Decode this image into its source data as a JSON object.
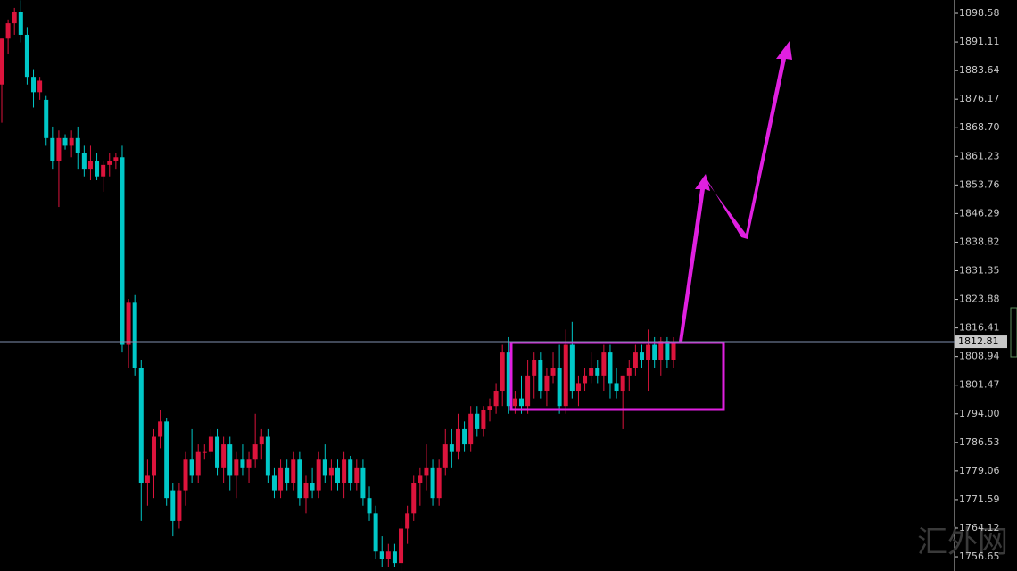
{
  "chart_data": {
    "type": "candlestick",
    "up_color": "#dc143c",
    "down_color": "#00c8c8",
    "ylim": [
      1752.93,
      1902.08
    ],
    "yticks": [
      1898.58,
      1891.11,
      1883.64,
      1876.17,
      {
        "value": 1868.7,
        "label": "1868.70"
      },
      1861.23,
      1853.76,
      1846.29,
      1838.82,
      1831.35,
      1823.88,
      1816.41,
      1808.94,
      1801.47,
      {
        "value": 1794,
        "label": "1794.00"
      },
      1786.53,
      1779.06,
      1771.59,
      1764.12,
      1756.65
    ],
    "current_price": 1812.81,
    "watermark": "汇外网",
    "open": [
      1880,
      1892,
      1896,
      1899,
      1893,
      1882,
      1878,
      1876,
      1866,
      1860,
      1866,
      1864,
      1866,
      1862,
      1858,
      1860,
      1856,
      1859,
      1860,
      1861,
      1812,
      1823,
      1806,
      1776,
      1778,
      1788,
      1792,
      1774,
      1766,
      1774,
      1782,
      1778,
      1784,
      1784,
      1788,
      1780,
      1786,
      1778,
      1782,
      1780,
      1782,
      1786,
      1788,
      1778,
      1774,
      1780,
      1776,
      1782,
      1772,
      1776,
      1774,
      1782,
      1778,
      1780,
      1776,
      1782,
      1776,
      1780,
      1772,
      1768,
      1758,
      1756,
      1758,
      1755,
      1764,
      1768,
      1776,
      1778,
      1780,
      1772,
      1780,
      1786,
      1784,
      1790,
      1786,
      1794,
      1790,
      1795,
      1796,
      1800,
      1810,
      1796,
      1798,
      1796,
      1804,
      1808,
      1800,
      1804,
      1806,
      1796,
      1812,
      1800,
      1802,
      1804,
      1806,
      1804,
      1810,
      1802,
      1800,
      1804,
      1806,
      1810,
      1808,
      1812,
      1808,
      1813,
      1808
    ],
    "high": [
      1892,
      1897,
      1900,
      1902,
      1895,
      1884,
      1882,
      1877,
      1869,
      1868,
      1867,
      1868,
      1869,
      1864,
      1864,
      1862,
      1860,
      1862,
      1862,
      1864,
      1824,
      1825,
      1808,
      1782,
      1790,
      1795,
      1793,
      1776,
      1776,
      1784,
      1790,
      1786,
      1786,
      1790,
      1790,
      1788,
      1788,
      1784,
      1786,
      1784,
      1794,
      1790,
      1790,
      1780,
      1782,
      1782,
      1784,
      1784,
      1778,
      1780,
      1784,
      1786,
      1782,
      1782,
      1784,
      1783,
      1782,
      1782,
      1775,
      1770,
      1762,
      1760,
      1760,
      1766,
      1770,
      1778,
      1780,
      1786,
      1782,
      1782,
      1790,
      1790,
      1794,
      1792,
      1796,
      1796,
      1796,
      1798,
      1802,
      1812,
      1814,
      1800,
      1804,
      1808,
      1810,
      1810,
      1806,
      1810,
      1812,
      1816,
      1818,
      1804,
      1806,
      1810,
      1808,
      1812,
      1812,
      1806,
      1804,
      1808,
      1812,
      1812,
      1816,
      1814,
      1814,
      1814,
      1814
    ],
    "low": [
      1870,
      1888,
      1893,
      1891,
      1880,
      1874,
      1876,
      1864,
      1858,
      1848,
      1863,
      1861,
      1858,
      1856,
      1855,
      1855,
      1852,
      1856,
      1858,
      1810,
      1806,
      1804,
      1766,
      1770,
      1772,
      1785,
      1770,
      1762,
      1764,
      1770,
      1776,
      1776,
      1782,
      1782,
      1778,
      1776,
      1774,
      1772,
      1778,
      1776,
      1780,
      1782,
      1776,
      1772,
      1772,
      1774,
      1774,
      1770,
      1768,
      1772,
      1772,
      1776,
      1774,
      1774,
      1772,
      1774,
      1774,
      1770,
      1766,
      1756,
      1754,
      1754,
      1754,
      1753,
      1760,
      1766,
      1770,
      1774,
      1770,
      1770,
      1778,
      1780,
      1782,
      1784,
      1784,
      1788,
      1788,
      1792,
      1794,
      1796,
      1794,
      1794,
      1794,
      1794,
      1798,
      1798,
      1796,
      1802,
      1794,
      1794,
      1798,
      1796,
      1800,
      1802,
      1802,
      1800,
      1798,
      1798,
      1790,
      1800,
      1804,
      1806,
      1800,
      1806,
      1804,
      1806,
      1806
    ],
    "close": [
      1892,
      1896,
      1899,
      1893,
      1882,
      1878,
      1881,
      1866,
      1860,
      1866,
      1864,
      1866,
      1862,
      1858,
      1860,
      1856,
      1859,
      1860,
      1861,
      1812,
      1823,
      1806,
      1776,
      1778,
      1788,
      1792,
      1772,
      1766,
      1774,
      1782,
      1778,
      1784,
      1784,
      1788,
      1780,
      1786,
      1778,
      1782,
      1780,
      1782,
      1786,
      1788,
      1778,
      1774,
      1780,
      1776,
      1782,
      1772,
      1776,
      1774,
      1782,
      1778,
      1780,
      1776,
      1782,
      1776,
      1780,
      1772,
      1768,
      1758,
      1756,
      1758,
      1755,
      1764,
      1768,
      1776,
      1778,
      1780,
      1772,
      1780,
      1786,
      1784,
      1790,
      1786,
      1794,
      1790,
      1795,
      1796,
      1800,
      1810,
      1796,
      1798,
      1796,
      1804,
      1808,
      1800,
      1804,
      1806,
      1796,
      1812,
      1800,
      1802,
      1804,
      1806,
      1804,
      1810,
      1802,
      1800,
      1804,
      1806,
      1810,
      1808,
      1812,
      1808,
      1813,
      1808,
      1812.81
    ]
  }
}
